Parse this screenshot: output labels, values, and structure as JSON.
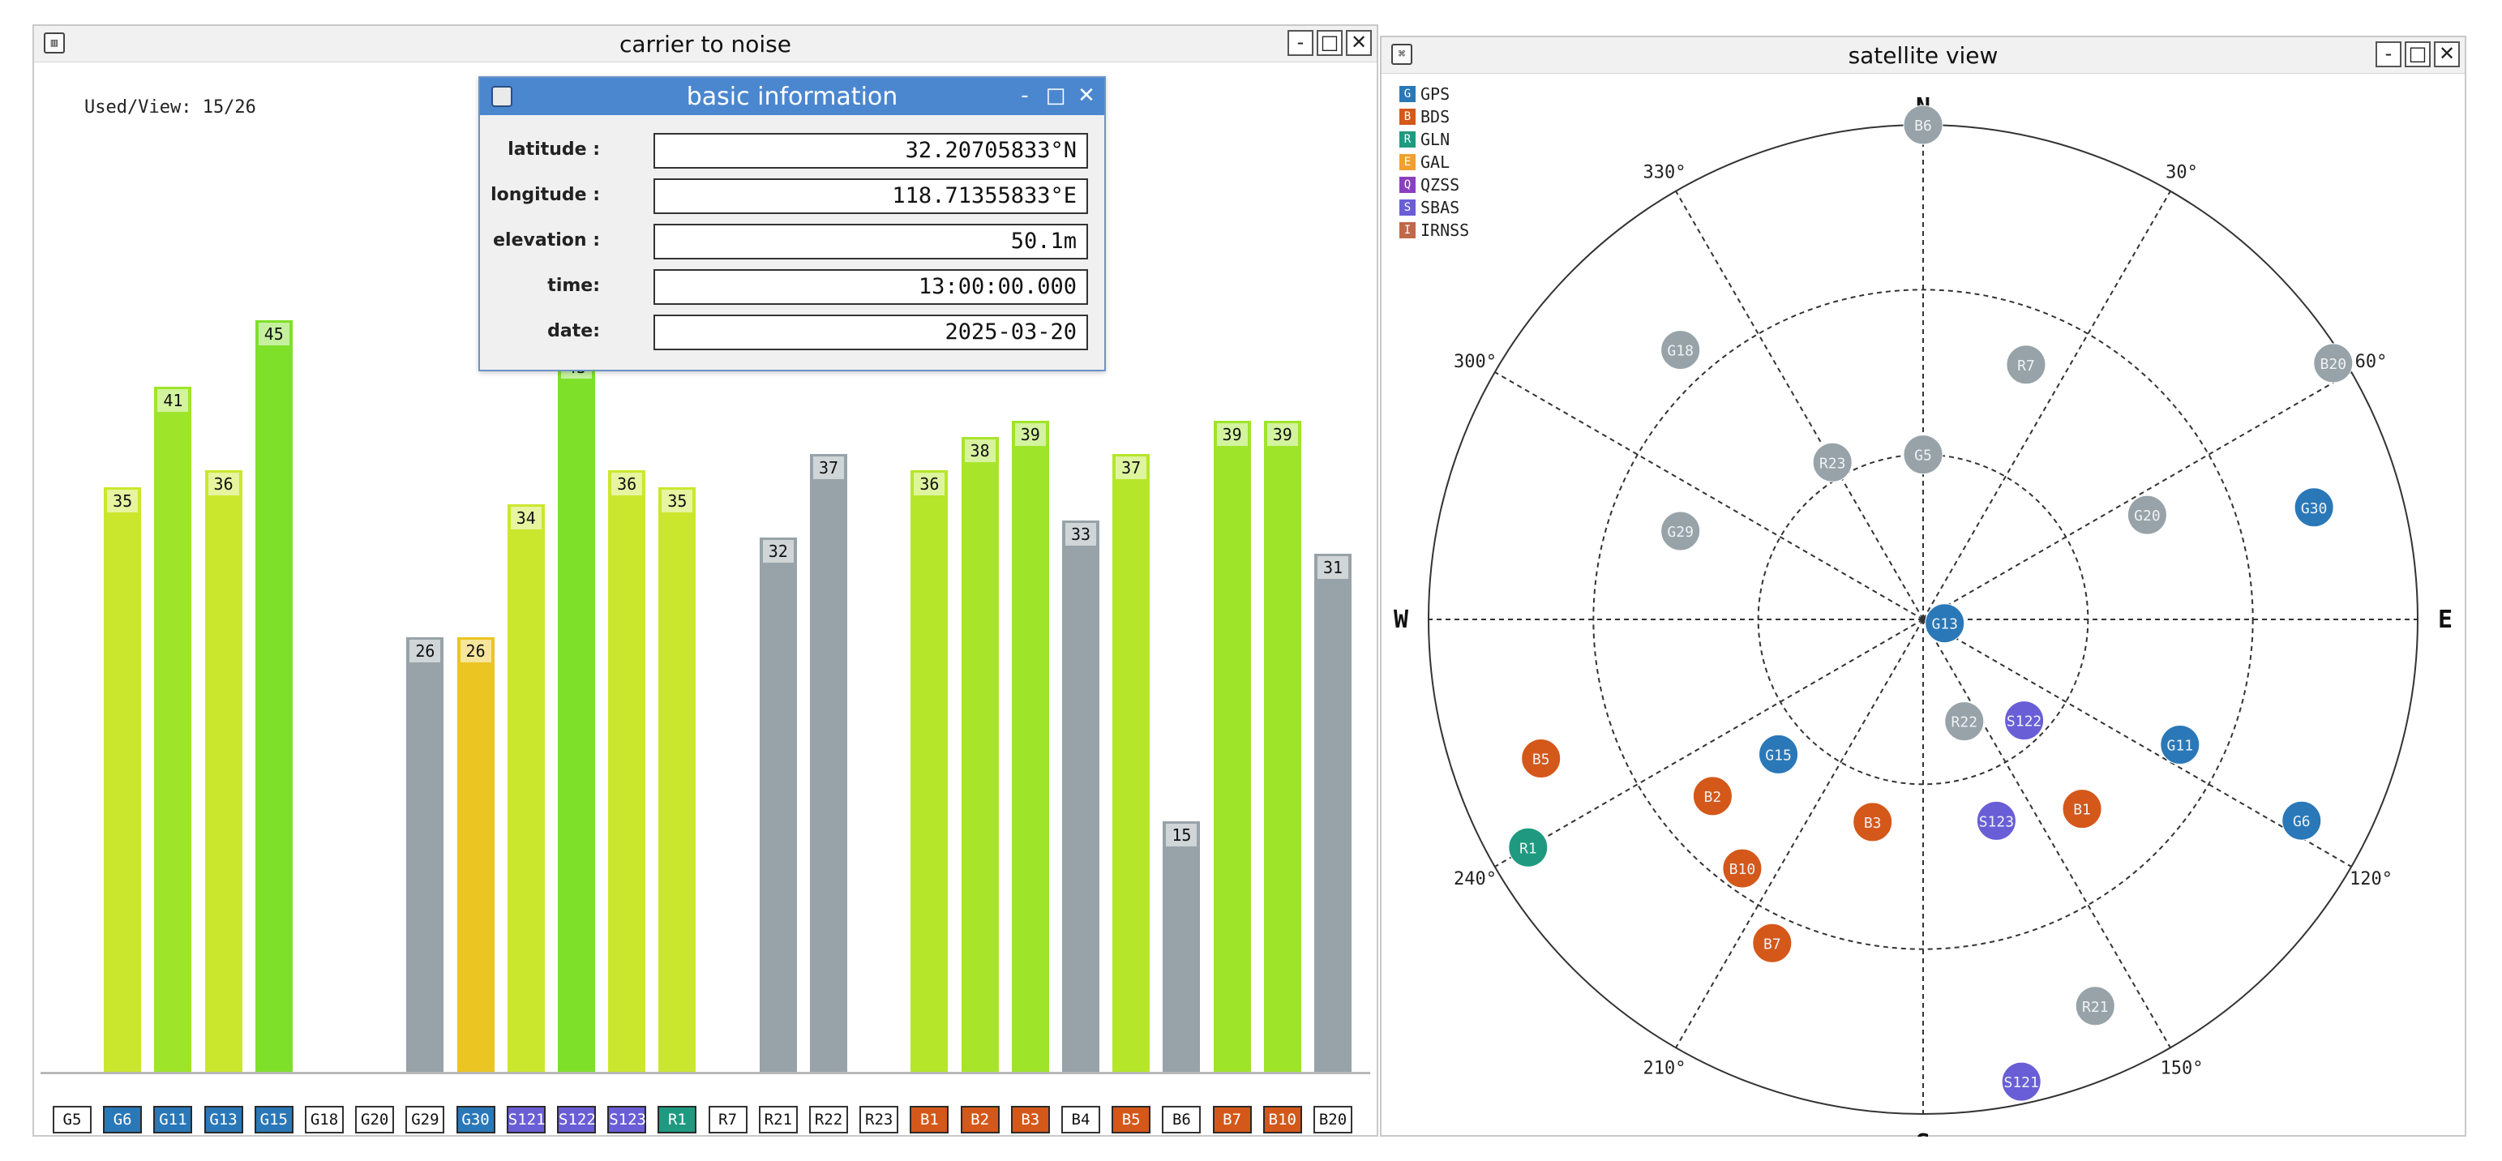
{
  "cn_window": {
    "title": "carrier to noise",
    "app_icon": "signal-chart-icon",
    "used_view": "Used/View: 15/26",
    "minimize": "-",
    "maximize": "□",
    "close": "✕"
  },
  "info_dialog": {
    "title": "basic information",
    "minimize": "-",
    "maximize": "□",
    "close": "✕",
    "fields": [
      {
        "label": "latitude :",
        "value": "32.20705833°N"
      },
      {
        "label": "longitude :",
        "value": "118.71355833°E"
      },
      {
        "label": "elevation :",
        "value": "50.1m"
      },
      {
        "label": "time:",
        "value": "13:00:00.000"
      },
      {
        "label": "date:",
        "value": "2025-03-20"
      }
    ]
  },
  "sky_window": {
    "title": "satellite view",
    "minimize": "-",
    "maximize": "□",
    "close": "✕",
    "legend": [
      {
        "letter": "G",
        "name": "GPS",
        "color": "#2a78b8"
      },
      {
        "letter": "B",
        "name": "BDS",
        "color": "#d4581a"
      },
      {
        "letter": "R",
        "name": "GLN",
        "color": "#1f9a80"
      },
      {
        "letter": "E",
        "name": "GAL",
        "color": "#f0a030"
      },
      {
        "letter": "Q",
        "name": "QZSS",
        "color": "#8a3fc0"
      },
      {
        "letter": "S",
        "name": "SBAS",
        "color": "#6a5ed6"
      },
      {
        "letter": "I",
        "name": "IRNSS",
        "color": "#c0684a"
      }
    ],
    "compass": {
      "N": "N",
      "E": "E",
      "S": "S",
      "W": "W"
    },
    "angle_labels": [
      {
        "az": 30,
        "text": "30°"
      },
      {
        "az": 60,
        "text": "60°"
      },
      {
        "az": 120,
        "text": "120°"
      },
      {
        "az": 150,
        "text": "150°"
      },
      {
        "az": 210,
        "text": "210°"
      },
      {
        "az": 240,
        "text": "240°"
      },
      {
        "az": 300,
        "text": "300°"
      },
      {
        "az": 330,
        "text": "330°"
      }
    ]
  },
  "colors": {
    "gps": "#2a78b8",
    "bds": "#d4581a",
    "glonass": "#1f9a80",
    "sbas": "#6a5ed6",
    "unused": "#97a3a8",
    "bar_green": "#7fe02a",
    "bar_lime": "#b6e629",
    "bar_yellowgreen": "#cbe72d",
    "bar_yellow": "#ebc522"
  },
  "chart_data": {
    "type": "bar",
    "title": "carrier to noise",
    "categories": [
      "G5",
      "G6",
      "G11",
      "G13",
      "G15",
      "G18",
      "G20",
      "G29",
      "G30",
      "S121",
      "S122",
      "S123",
      "R1",
      "R7",
      "R21",
      "R22",
      "R23",
      "B1",
      "B2",
      "B3",
      "B4",
      "B5",
      "B6",
      "B7",
      "B10",
      "B20"
    ],
    "values": [
      null,
      35,
      41,
      36,
      45,
      null,
      null,
      26,
      26,
      34,
      43,
      36,
      35,
      null,
      32,
      37,
      null,
      36,
      38,
      39,
      33,
      37,
      15,
      39,
      39,
      31
    ],
    "used": [
      false,
      true,
      true,
      true,
      true,
      false,
      false,
      false,
      true,
      true,
      true,
      true,
      true,
      false,
      false,
      false,
      false,
      true,
      true,
      true,
      false,
      true,
      false,
      true,
      true,
      false
    ],
    "bar_colors": [
      "",
      "#cbe72d",
      "#9ee52a",
      "#cbe72d",
      "#7fe02a",
      "",
      "",
      "#97a3a8",
      "#ebc522",
      "#cbe72d",
      "#7fe02a",
      "#cbe72d",
      "#cbe72d",
      "",
      "#97a3a8",
      "#97a3a8",
      "",
      "#b6e629",
      "#a8e52a",
      "#9ee52a",
      "#97a3a8",
      "#b6e629",
      "#97a3a8",
      "#9ee52a",
      "#9ee52a",
      "#97a3a8"
    ],
    "tick_labels": [
      "G5",
      "G6",
      "G11",
      "G13",
      "G15",
      "G18",
      "G20",
      "G29",
      "G30",
      "S121",
      "S122",
      "S123",
      "R1",
      "R7",
      "R21",
      "R22",
      "R23",
      "B1",
      "B2",
      "B3",
      "B4",
      "B5",
      "B6",
      "B7",
      "B10",
      "B20"
    ],
    "xlabel": "",
    "ylabel": "",
    "ylim": [
      0,
      60
    ],
    "grid": false
  },
  "sky_data": {
    "rings_elevation": [
      0,
      30,
      60
    ],
    "satellites": [
      {
        "id": "B6",
        "az": 0,
        "el": 0,
        "color": "#97a3a8"
      },
      {
        "id": "G18",
        "az": 318,
        "el": 24,
        "color": "#97a3a8"
      },
      {
        "id": "B20",
        "az": 58,
        "el": 2,
        "color": "#97a3a8"
      },
      {
        "id": "R7",
        "az": 22,
        "el": 40,
        "color": "#97a3a8"
      },
      {
        "id": "G30",
        "az": 74,
        "el": 16,
        "color": "#2a78b8"
      },
      {
        "id": "G5",
        "az": 0,
        "el": 60,
        "color": "#97a3a8"
      },
      {
        "id": "R23",
        "az": 330,
        "el": 57,
        "color": "#97a3a8"
      },
      {
        "id": "G20",
        "az": 65,
        "el": 45,
        "color": "#97a3a8"
      },
      {
        "id": "G29",
        "az": 290,
        "el": 43,
        "color": "#97a3a8"
      },
      {
        "id": "G13",
        "az": 100,
        "el": 86,
        "color": "#2a78b8"
      },
      {
        "id": "R22",
        "az": 158,
        "el": 70,
        "color": "#97a3a8"
      },
      {
        "id": "S122",
        "az": 135,
        "el": 64,
        "color": "#6a5ed6"
      },
      {
        "id": "B5",
        "az": 250,
        "el": 16,
        "color": "#d4581a"
      },
      {
        "id": "G15",
        "az": 227,
        "el": 54,
        "color": "#2a78b8"
      },
      {
        "id": "G11",
        "az": 116,
        "el": 38,
        "color": "#2a78b8"
      },
      {
        "id": "B2",
        "az": 230,
        "el": 40,
        "color": "#d4581a"
      },
      {
        "id": "B3",
        "az": 194,
        "el": 52,
        "color": "#d4581a"
      },
      {
        "id": "B1",
        "az": 140,
        "el": 45,
        "color": "#d4581a"
      },
      {
        "id": "S123",
        "az": 160,
        "el": 51,
        "color": "#6a5ed6"
      },
      {
        "id": "R1",
        "az": 240,
        "el": 7,
        "color": "#1f9a80"
      },
      {
        "id": "B10",
        "az": 216,
        "el": 34,
        "color": "#d4581a"
      },
      {
        "id": "G6",
        "az": 118,
        "el": 12,
        "color": "#2a78b8"
      },
      {
        "id": "B7",
        "az": 205,
        "el": 25,
        "color": "#d4581a"
      },
      {
        "id": "R21",
        "az": 156,
        "el": 13,
        "color": "#97a3a8"
      },
      {
        "id": "S121",
        "az": 168,
        "el": 4,
        "color": "#6a5ed6"
      }
    ]
  }
}
